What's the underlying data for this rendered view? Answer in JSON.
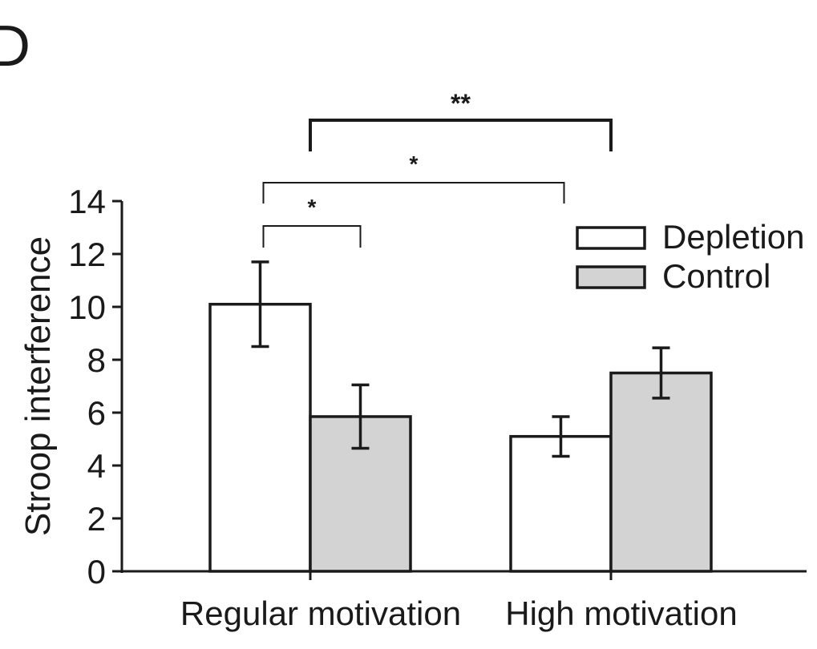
{
  "panel_label": "D",
  "chart_data": {
    "type": "bar",
    "ylabel": "Stroop interference",
    "xlabel": "",
    "ylim": [
      0,
      14
    ],
    "yticks": [
      0,
      2,
      4,
      6,
      8,
      10,
      12,
      14
    ],
    "categories": [
      "Regular motivation",
      "High motivation"
    ],
    "series": [
      {
        "name": "Depletion",
        "values": [
          10.1,
          5.1
        ],
        "errors": [
          1.6,
          0.75
        ],
        "color": "#ffffff"
      },
      {
        "name": "Control",
        "values": [
          5.85,
          7.5
        ],
        "errors": [
          1.2,
          0.95
        ],
        "color": "#d3d3d3"
      }
    ],
    "legend_position": "top-right",
    "grid": false,
    "significance": [
      {
        "label": "*",
        "from": [
          "Regular motivation",
          "Depletion"
        ],
        "to": [
          "Regular motivation",
          "Control"
        ]
      },
      {
        "label": "*",
        "from": [
          "Regular motivation",
          "Depletion"
        ],
        "to": [
          "High motivation",
          "Depletion"
        ]
      },
      {
        "label": "**",
        "from": [
          "Regular motivation",
          "all"
        ],
        "to": [
          "High motivation",
          "all"
        ]
      }
    ]
  }
}
